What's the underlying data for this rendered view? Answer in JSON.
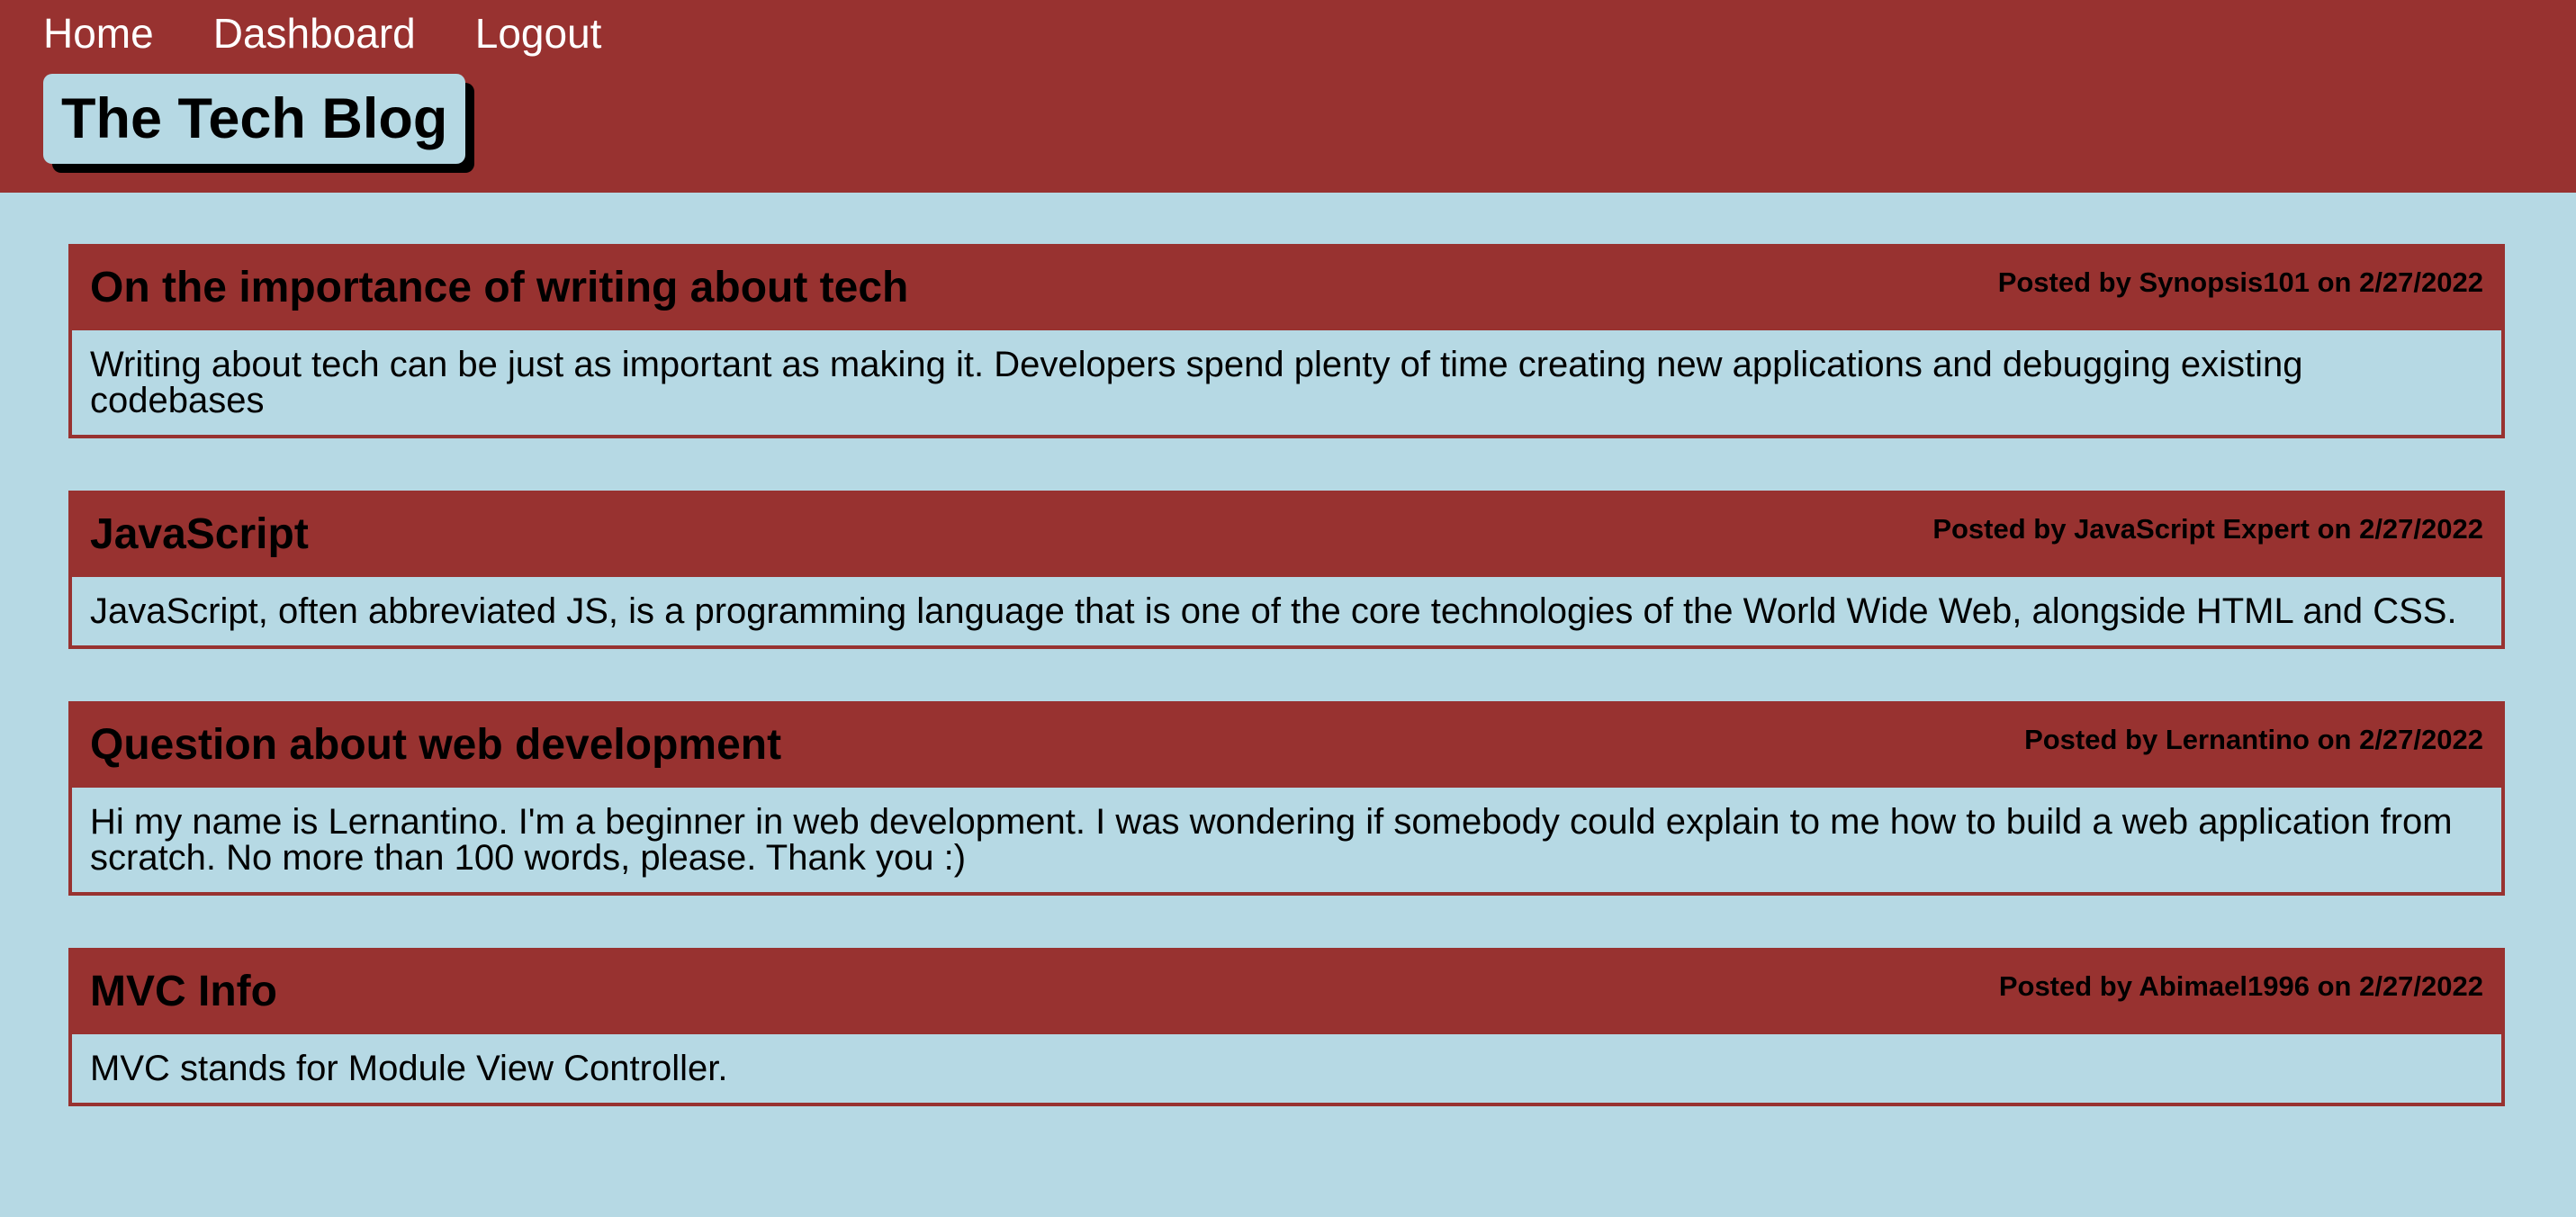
{
  "nav": {
    "home": "Home",
    "dashboard": "Dashboard",
    "logout": "Logout"
  },
  "brand": {
    "title": "The Tech Blog"
  },
  "posts": [
    {
      "title": "On the importance of writing about tech",
      "meta": "Posted by Synopsis101 on 2/27/2022",
      "body": "Writing about tech can be just as important as making it. Developers spend plenty of time creating new applications and debugging existing codebases"
    },
    {
      "title": "JavaScript",
      "meta": "Posted by JavaScript Expert on 2/27/2022",
      "body": "JavaScript, often abbreviated JS, is a programming language that is one of the core technologies of the World Wide Web, alongside HTML and CSS."
    },
    {
      "title": "Question about web development",
      "meta": "Posted by Lernantino on 2/27/2022",
      "body": "Hi my name is Lernantino. I'm a beginner in web development. I was wondering if somebody could explain to me how to build a web application from scratch. No more than 100 words, please. Thank you :)"
    },
    {
      "title": "MVC Info",
      "meta": "Posted by Abimael1996 on 2/27/2022",
      "body": "MVC stands for Module View Controller."
    }
  ],
  "colors": {
    "header_bg": "#983230",
    "page_bg": "#b6d9e4",
    "nav_text": "#ffffff",
    "title_text": "#000000"
  }
}
